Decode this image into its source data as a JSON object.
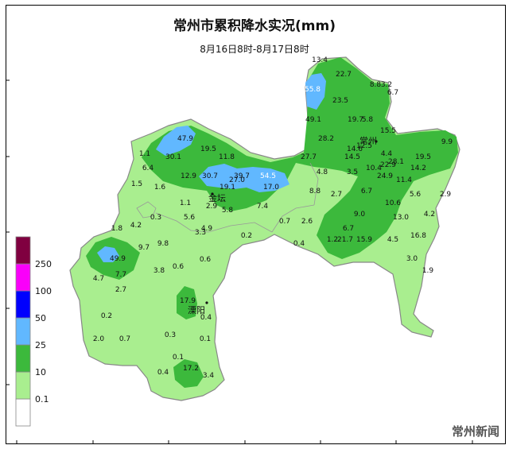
{
  "map": {
    "title": "常州市累积降水实况(mm)",
    "subtitle": "8月16日8时-8月17日8时",
    "watermark": "常州新闻",
    "cities": [
      {
        "name": "常州"
      },
      {
        "name": "金坛"
      },
      {
        "name": "溧阳"
      }
    ],
    "legend": {
      "levels": [
        {
          "label": "",
          "color": "#ffffff"
        },
        {
          "label": "0.1",
          "color": "#a9ee8f"
        },
        {
          "label": "10",
          "color": "#3cb93c"
        },
        {
          "label": "25",
          "color": "#61b8ff"
        },
        {
          "label": "50",
          "color": "#0000fe"
        },
        {
          "label": "100",
          "color": "#fa00fa"
        },
        {
          "label": "250",
          "color": "#800040"
        }
      ]
    },
    "stations": [
      "13.4",
      "22.7",
      "8.8",
      "3.2",
      "55.8",
      "23.5",
      "6.7",
      "49.1",
      "19.7",
      "5.8",
      "15.5",
      "47.9",
      "28.2",
      "14.6",
      "12.5",
      "9.9",
      "1.1",
      "30.1",
      "19.5",
      "11.8",
      "27.7",
      "14.5",
      "4.4",
      "28.1",
      "19.5",
      "6.4",
      "10.4",
      "22.9",
      "14.2",
      "12.9",
      "30.7",
      "39.7",
      "27.0",
      "54.5",
      "4.8",
      "3.5",
      "24.9",
      "11.4",
      "1.5",
      "1.6",
      "17.0",
      "19.1",
      "8.8",
      "2.7",
      "6.7",
      "5.6",
      "2.9",
      "1.1",
      "2.9",
      "5.8",
      "7.4",
      "10.6",
      "0.3",
      "5.6",
      "9.0",
      "4.2",
      "4.2",
      "4.9",
      "0.7",
      "2.6",
      "13.0",
      "1.8",
      "3.3",
      "6.7",
      "16.8",
      "0.2",
      "1.2",
      "21.7",
      "15.9",
      "4.5",
      "9.7",
      "9.8",
      "0.4",
      "49.9",
      "0.6",
      "3.0",
      "4.7",
      "7.7",
      "3.8",
      "0.6",
      "1.9",
      "2.7",
      "17.9",
      "0.2",
      "0.4",
      "2.0",
      "0.7",
      "0.3",
      "0.1",
      "0.1",
      "17.2",
      "0.4",
      "3.4"
    ]
  }
}
